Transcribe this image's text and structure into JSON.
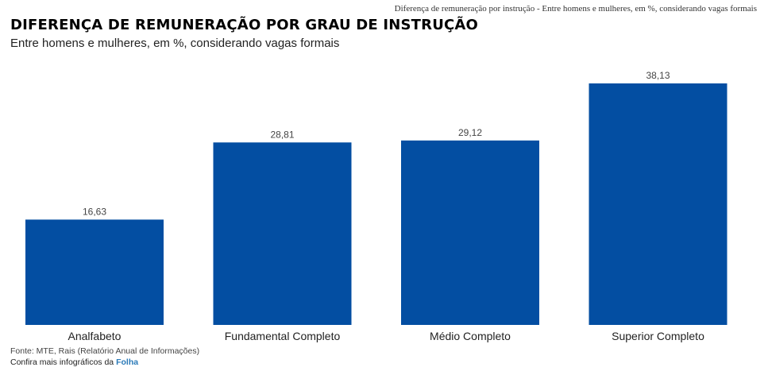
{
  "browser_tab_title": "Diferença de remuneração por instrução - Entre homens e mulheres, em %, considerando vagas formais",
  "title": "DIFERENÇA DE REMUNERAÇÃO POR GRAU DE INSTRUÇÃO",
  "subtitle": "Entre homens e mulheres, em %, considerando vagas formais",
  "footer": {
    "source": "Fonte: MTE, Rais (Relatório Anual de Informações)",
    "more_prefix": "Confira mais infográficos da",
    "more_link": "Folha"
  },
  "colors": {
    "bar": "#034EA2",
    "link": "#2a7ab8"
  },
  "chart_data": {
    "type": "bar",
    "categories": [
      "Analfabeto",
      "Fundamental Completo",
      "Médio Completo",
      "Superior Completo"
    ],
    "values": [
      16.63,
      28.81,
      29.12,
      38.13
    ],
    "value_labels": [
      "16,63",
      "28,81",
      "29,12",
      "38,13"
    ],
    "title": "DIFERENÇA DE REMUNERAÇÃO POR GRAU DE INSTRUÇÃO",
    "subtitle": "Entre homens e mulheres, em %, considerando vagas formais",
    "xlabel": "",
    "ylabel": "",
    "ylim": [
      0,
      38.13
    ],
    "grid": false,
    "legend": "none"
  }
}
